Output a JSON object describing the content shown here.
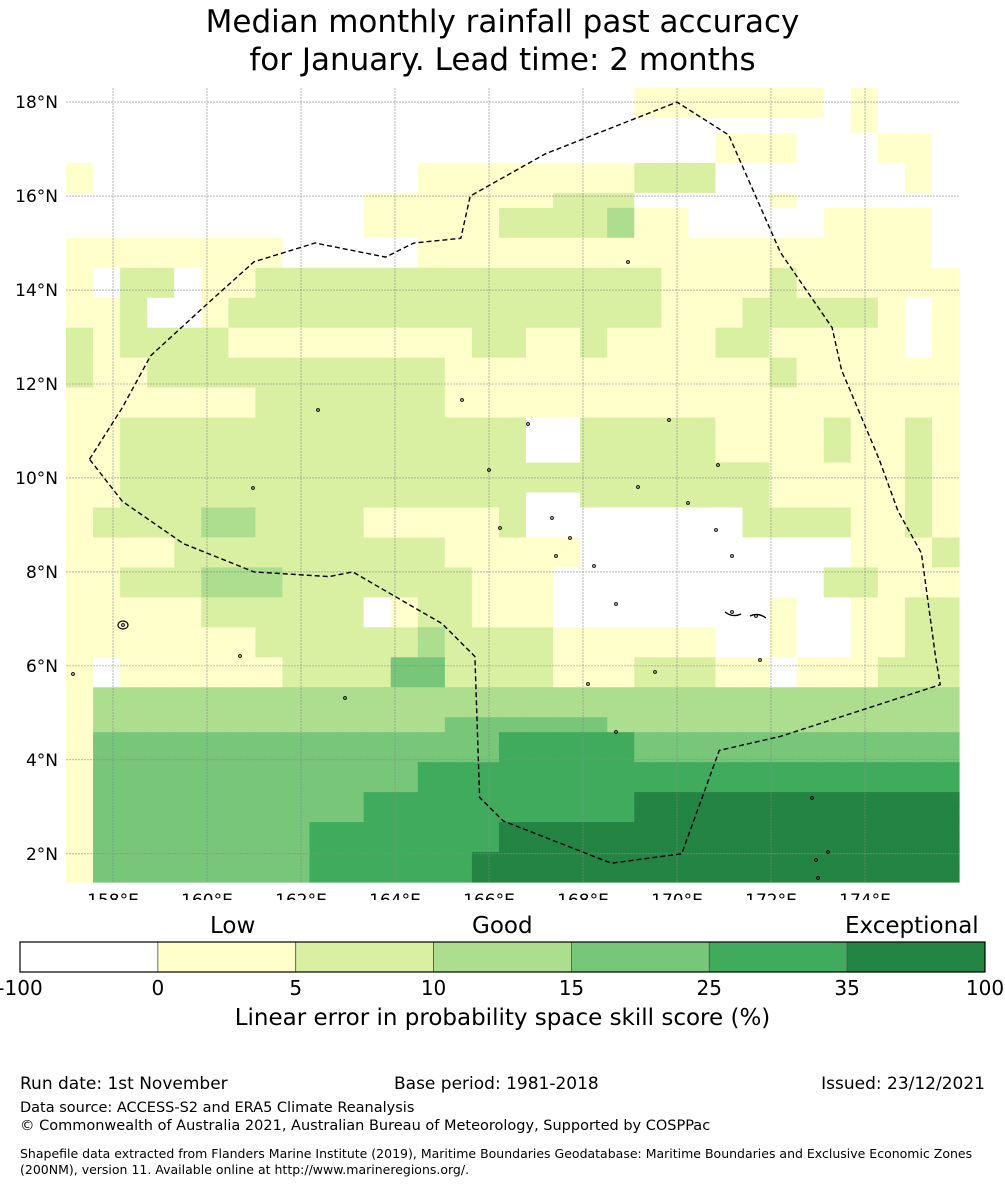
{
  "title": {
    "line1": "Median monthly rainfall past accuracy",
    "line2": "for January. Lead time: 2 months"
  },
  "map": {
    "lat_labels": [
      "18°N",
      "16°N",
      "14°N",
      "12°N",
      "10°N",
      "8°N",
      "6°N",
      "4°N",
      "2°N"
    ],
    "lat_values": [
      18,
      16,
      14,
      12,
      10,
      8,
      6,
      4,
      2
    ],
    "lon_labels": [
      "158°E",
      "160°E",
      "162°E",
      "164°E",
      "166°E",
      "168°E",
      "170°E",
      "172°E",
      "174°E"
    ],
    "lon_values": [
      158,
      160,
      162,
      164,
      166,
      168,
      170,
      172,
      174
    ],
    "lon_range": [
      157,
      176
    ],
    "lat_range": [
      1.4,
      18.3
    ],
    "grid_rows_north_to_south": [
      "000000000000000000000111111101000",
      "000000000000000000000111111101000",
      "000000000000000000000000000001000",
      "000000000000000000000000111000110",
      "000000000000000000000000111000110",
      "100000000000011111111222000000010",
      "100000000000011111111222000000010",
      "000000000001111111222000001000000",
      "000000000001111122223110000011110",
      "000000000001111122223110000011110",
      "111111110000011111111111111111110",
      "111111110000011111111111111111110",
      "102201122222222222222211112111111",
      "102201122222222222222211112111111",
      "112001222222222222222211122222101",
      "112001222222222222222211122222101",
      "212222111111111221121111221111101",
      "212222111111111221121111221111101",
      "211222222222221111111111112111111",
      "211222222222221111111111112111111",
      "111111122222221111111111111111111",
      "111111122222221111111111111111111",
      "112222222222222220022222111121121",
      "112222222222222220022222111121121",
      "112222222222222220022222111121121",
      "112222222222222222222222221111121",
      "112222222222222222222222221111121",
      "112222222222222220022222221111121",
      "122223322221111120000000022221121",
      "122223322221111120000000022221121",
      "111122222222221111100000000001112",
      "111122222222221111100000000001112",
      "112223332222222111000000000022111",
      "112223332222222111000000000022111",
      "111112222220122111000000001001122",
      "111112222220122111000000001001122",
      "111111122222232222111111001001122",
      "111111122222232222111111001001122",
      "101111112222442222111222110111222",
      "101111112222442222111222110111222",
      "133333333333333333333333333333333",
      "133333333333333333333333333333333",
      "133333333333334444443333333333333",
      "144444444444444455555444444444444",
      "144444444444444455555444444444444",
      "144444444444455555555555555555555",
      "144444444444455555555555555555555",
      "144444444445555555555666666666666",
      "144444444445555555555666666666666",
      "144444444555555566666666666666666",
      "144444444555555566666666666666666",
      "144444444555555666666666666666666",
      "144444444555555666666666666666666"
    ],
    "eez_outline_lonlat": [
      [
        157.5,
        10.4
      ],
      [
        158.2,
        11.5
      ],
      [
        158.8,
        12.6
      ],
      [
        160.0,
        13.7
      ],
      [
        161.0,
        14.6
      ],
      [
        162.3,
        15.0
      ],
      [
        163.8,
        14.7
      ],
      [
        164.4,
        15.0
      ],
      [
        165.4,
        15.1
      ],
      [
        165.6,
        16.0
      ],
      [
        167.2,
        16.9
      ],
      [
        170.0,
        18.0
      ],
      [
        171.1,
        17.3
      ],
      [
        172.2,
        14.8
      ],
      [
        173.3,
        13.2
      ],
      [
        173.5,
        12.3
      ],
      [
        174.3,
        10.4
      ],
      [
        174.7,
        9.3
      ],
      [
        175.2,
        8.4
      ],
      [
        175.5,
        6.2
      ],
      [
        175.6,
        5.6
      ],
      [
        172.2,
        4.5
      ],
      [
        170.9,
        4.2
      ],
      [
        170.1,
        2.0
      ],
      [
        168.6,
        1.8
      ],
      [
        166.3,
        2.7
      ],
      [
        165.8,
        3.2
      ],
      [
        165.7,
        6.2
      ],
      [
        165.0,
        6.9
      ],
      [
        163.1,
        8.0
      ],
      [
        162.6,
        7.9
      ],
      [
        161.0,
        8.0
      ],
      [
        159.5,
        8.6
      ],
      [
        158.2,
        9.5
      ],
      [
        157.5,
        10.4
      ]
    ]
  },
  "colorbar": {
    "categories": [
      "Low",
      "Good",
      "Exceptional"
    ],
    "ticks": [
      "-100",
      "0",
      "5",
      "10",
      "15",
      "25",
      "35",
      "100"
    ],
    "colors": [
      "#ffffff",
      "#ffffcc",
      "#d9f0a3",
      "#addd8e",
      "#78c679",
      "#41ab5d",
      "#238443"
    ],
    "label": "Linear error in probability space skill score (%)"
  },
  "footer": {
    "run_date": "Run date: 1st November",
    "base_period": "Base period: 1981-2018",
    "issued": "Issued: 23/12/2021",
    "data_source": "Data source: ACCESS-S2 and ERA5 Climate Reanalysis",
    "copyright": "© Commonwealth of Australia 2021, Australian Bureau of Meteorology, Supported by COSPPac",
    "shapefile": "Shapefile data extracted from Flanders Marine Institute (2019), Maritime Boundaries Geodatabase: Maritime Boundaries and Exclusive Economic Zones (200NM), version 11. Available online at http://www.marineregions.org/."
  }
}
